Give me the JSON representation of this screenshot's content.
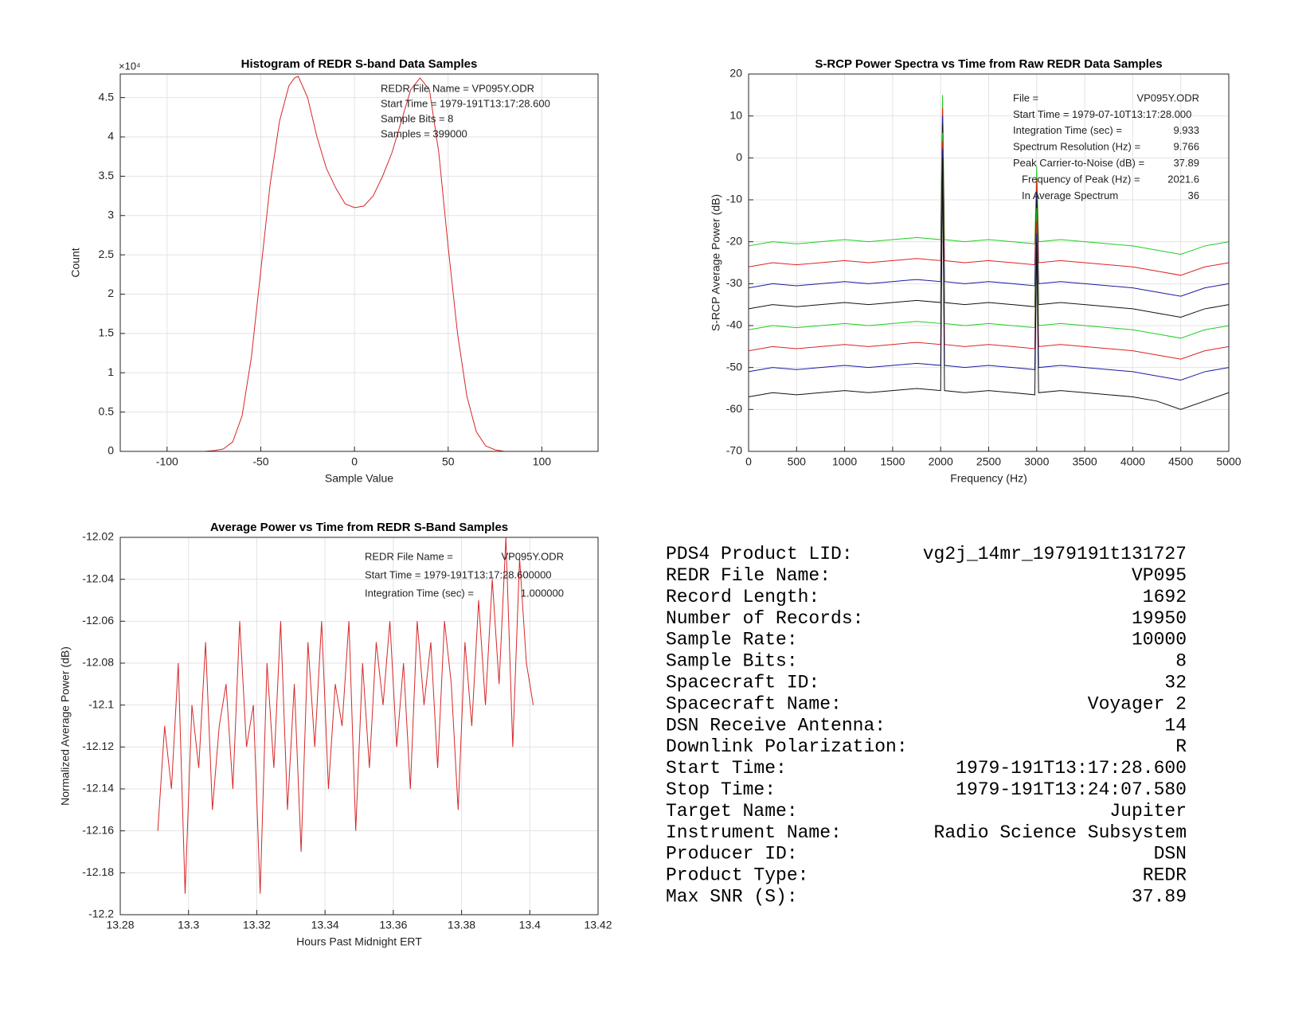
{
  "chart_data": [
    {
      "type": "line",
      "title": "Histogram of REDR S-band Data Samples",
      "xlabel": "Sample Value",
      "ylabel": "Count",
      "y_multiplier": "×10⁴",
      "xlim": [
        -125,
        130
      ],
      "xticks": [
        -100,
        -50,
        0,
        50,
        100
      ],
      "ylim": [
        0,
        4.8
      ],
      "yticks": [
        0,
        0.5,
        1,
        1.5,
        2,
        2.5,
        3,
        3.5,
        4,
        4.5
      ],
      "grid": true,
      "annotations": [
        "REDR File Name = VP095Y.ODR",
        "Start Time = 1979-191T13:17:28.600",
        "Sample Bits = 8",
        "Samples = 399000"
      ],
      "x": [
        -85,
        -80,
        -75,
        -70,
        -65,
        -60,
        -55,
        -50,
        -45,
        -40,
        -35,
        -32,
        -30,
        -25,
        -20,
        -15,
        -10,
        -5,
        0,
        5,
        10,
        15,
        20,
        25,
        30,
        35,
        40,
        45,
        50,
        55,
        60,
        65,
        70,
        75,
        80,
        85
      ],
      "series": [
        {
          "color": "#d62728",
          "values": [
            0,
            0,
            0.01,
            0.03,
            0.12,
            0.45,
            1.2,
            2.3,
            3.4,
            4.2,
            4.65,
            4.75,
            4.77,
            4.5,
            4.0,
            3.6,
            3.35,
            3.15,
            3.1,
            3.12,
            3.25,
            3.5,
            3.8,
            4.2,
            4.6,
            4.75,
            4.6,
            3.8,
            2.6,
            1.5,
            0.7,
            0.25,
            0.07,
            0.02,
            0,
            0
          ]
        }
      ]
    },
    {
      "type": "line",
      "title": "S-RCP Power Spectra vs Time from Raw REDR Data Samples",
      "xlabel": "Frequency (Hz)",
      "ylabel": "S-RCP Average Power (dB)",
      "xlim": [
        0,
        5000
      ],
      "xticks": [
        0,
        500,
        1000,
        1500,
        2000,
        2500,
        3000,
        3500,
        4000,
        4500,
        5000
      ],
      "ylim": [
        -70,
        20
      ],
      "yticks": [
        -70,
        -60,
        -50,
        -40,
        -30,
        -20,
        -10,
        0,
        10,
        20
      ],
      "grid": true,
      "annotations": [
        {
          "label": "File =",
          "value": "VP095Y.ODR"
        },
        {
          "label": "Start Time = 1979-07-10T13:17:28.000"
        },
        {
          "label": "Integration Time (sec) =",
          "value": "9.933"
        },
        {
          "label": "Spectrum Resolution (Hz) =",
          "value": "9.766"
        },
        {
          "label": "Peak Carrier-to-Noise (dB) =",
          "value": "37.89"
        },
        {
          "label": "Frequency of Peak (Hz) =",
          "value": "2021.6"
        },
        {
          "label": "In Average Spectrum",
          "value": "36"
        }
      ],
      "x": [
        0,
        250,
        500,
        750,
        1000,
        1250,
        1500,
        1750,
        2000,
        2020,
        2040,
        2250,
        2500,
        2750,
        2980,
        3000,
        3020,
        3250,
        3500,
        3750,
        4000,
        4250,
        4500,
        4750,
        5000
      ],
      "series": [
        {
          "color": "#22cc22",
          "values": [
            -21,
            -20,
            -20.5,
            -20,
            -19.5,
            -20,
            -19.5,
            -19,
            -19.5,
            15,
            -19.5,
            -20,
            -19.5,
            -20,
            -20.5,
            -2,
            -20,
            -19.5,
            -20,
            -20.5,
            -21,
            -22,
            -23,
            -21,
            -20
          ]
        },
        {
          "color": "#e02020",
          "values": [
            -26,
            -25,
            -25.5,
            -25,
            -24.5,
            -25,
            -24.5,
            -24,
            -24.5,
            12,
            -24.5,
            -25,
            -24.5,
            -25,
            -25.5,
            -5,
            -25,
            -24.5,
            -25,
            -25.5,
            -26,
            -27,
            -28,
            -26,
            -25
          ]
        },
        {
          "color": "#1a1aa0",
          "values": [
            -31,
            -30,
            -30.5,
            -30,
            -29.5,
            -30,
            -29.5,
            -29,
            -29.5,
            10,
            -29.5,
            -30,
            -29.5,
            -30,
            -30.5,
            -8,
            -30,
            -29.5,
            -30,
            -30.5,
            -31,
            -32,
            -33,
            -31,
            -30
          ]
        },
        {
          "color": "#111111",
          "values": [
            -36,
            -35,
            -35.5,
            -35,
            -34.5,
            -35,
            -34.5,
            -34,
            -34.5,
            8,
            -34.5,
            -35,
            -34.5,
            -35,
            -35.5,
            -10,
            -35,
            -34.5,
            -35,
            -35.5,
            -36,
            -37,
            -38,
            -36,
            -35
          ]
        },
        {
          "color": "#22cc22",
          "values": [
            -41,
            -40,
            -40.5,
            -40,
            -39.5,
            -40,
            -39.5,
            -39,
            -39.5,
            6,
            -39.5,
            -40,
            -39.5,
            -40,
            -40.5,
            -12,
            -40,
            -39.5,
            -40,
            -40.5,
            -41,
            -42,
            -43,
            -41,
            -40
          ]
        },
        {
          "color": "#e02020",
          "values": [
            -46,
            -45,
            -45.5,
            -45,
            -44.5,
            -45,
            -44.5,
            -44,
            -44.5,
            4,
            -44.5,
            -45,
            -44.5,
            -45,
            -45.5,
            -15,
            -45,
            -44.5,
            -45,
            -45.5,
            -46,
            -47,
            -48,
            -46,
            -45
          ]
        },
        {
          "color": "#1a1aa0",
          "values": [
            -51,
            -50,
            -50.5,
            -50,
            -49.5,
            -50,
            -49.5,
            -49,
            -49.5,
            2,
            -49.5,
            -50,
            -49.5,
            -50,
            -50.5,
            -18,
            -50,
            -49.5,
            -50,
            -50.5,
            -51,
            -52,
            -53,
            -51,
            -50
          ]
        },
        {
          "color": "#111111",
          "values": [
            -57,
            -56,
            -56.5,
            -56,
            -55.5,
            -56,
            -55.5,
            -55,
            -55.5,
            0,
            -55.5,
            -56,
            -55.5,
            -56,
            -56.5,
            -20,
            -56,
            -55.5,
            -56,
            -56.5,
            -57,
            -58,
            -60,
            -58,
            -56
          ]
        }
      ]
    },
    {
      "type": "line",
      "title": "Average Power vs Time from REDR S-Band Samples",
      "xlabel": "Hours Past Midnight ERT",
      "ylabel": "Normalized Average Power (dB)",
      "xlim": [
        13.28,
        13.42
      ],
      "xticks": [
        13.28,
        13.3,
        13.32,
        13.34,
        13.36,
        13.38,
        13.4,
        13.42
      ],
      "ylim": [
        -12.2,
        -12.02
      ],
      "yticks": [
        -12.2,
        -12.18,
        -12.16,
        -12.14,
        -12.12,
        -12.1,
        -12.08,
        -12.06,
        -12.04,
        -12.02
      ],
      "grid": true,
      "annotations": [
        {
          "label": "REDR File Name =",
          "value": "VP095Y.ODR"
        },
        {
          "label": "Start Time = 1979-191T13:17:28.600000"
        },
        {
          "label": "Integration Time (sec) =",
          "value": "1.000000"
        }
      ],
      "x": [
        13.291,
        13.293,
        13.295,
        13.297,
        13.299,
        13.301,
        13.303,
        13.305,
        13.307,
        13.309,
        13.311,
        13.313,
        13.315,
        13.317,
        13.319,
        13.321,
        13.323,
        13.325,
        13.327,
        13.329,
        13.331,
        13.333,
        13.335,
        13.337,
        13.339,
        13.341,
        13.343,
        13.345,
        13.347,
        13.349,
        13.351,
        13.353,
        13.355,
        13.357,
        13.359,
        13.361,
        13.363,
        13.365,
        13.367,
        13.369,
        13.371,
        13.373,
        13.375,
        13.377,
        13.379,
        13.381,
        13.383,
        13.385,
        13.387,
        13.389,
        13.391,
        13.393,
        13.395,
        13.397,
        13.399,
        13.401
      ],
      "series": [
        {
          "color": "#d62728",
          "values": [
            -12.16,
            -12.11,
            -12.14,
            -12.08,
            -12.19,
            -12.1,
            -12.13,
            -12.07,
            -12.15,
            -12.11,
            -12.09,
            -12.14,
            -12.06,
            -12.12,
            -12.1,
            -12.19,
            -12.08,
            -12.13,
            -12.06,
            -12.15,
            -12.09,
            -12.17,
            -12.07,
            -12.12,
            -12.06,
            -12.14,
            -12.09,
            -12.11,
            -12.06,
            -12.16,
            -12.08,
            -12.13,
            -12.07,
            -12.1,
            -12.06,
            -12.12,
            -12.08,
            -12.14,
            -12.06,
            -12.1,
            -12.07,
            -12.13,
            -12.06,
            -12.09,
            -12.15,
            -12.07,
            -12.11,
            -12.05,
            -12.1,
            -12.04,
            -12.09,
            -12.02,
            -12.12,
            -12.03,
            -12.08,
            -12.1
          ]
        }
      ]
    }
  ],
  "table": {
    "rows": [
      [
        "PDS4 Product LID:",
        "vg2j_14mr_1979191t131727"
      ],
      [
        "REDR File Name:",
        "VP095"
      ],
      [
        "Record Length:",
        "1692"
      ],
      [
        "Number of Records:",
        "19950"
      ],
      [
        "Sample Rate:",
        "10000"
      ],
      [
        "Sample Bits:",
        "8"
      ],
      [
        "Spacecraft ID:",
        "32"
      ],
      [
        "Spacecraft Name:",
        "Voyager 2"
      ],
      [
        "DSN Receive Antenna:",
        "14"
      ],
      [
        "Downlink Polarization:",
        "R"
      ],
      [
        "Start Time:",
        "1979-191T13:17:28.600"
      ],
      [
        "Stop Time:",
        "1979-191T13:24:07.580"
      ],
      [
        "Target Name:",
        "Jupiter"
      ],
      [
        "Instrument Name:",
        "Radio Science Subsystem"
      ],
      [
        "Producer ID:",
        "DSN"
      ],
      [
        "Product Type:",
        "REDR"
      ],
      [
        "Max SNR (S):",
        "37.89"
      ]
    ]
  }
}
